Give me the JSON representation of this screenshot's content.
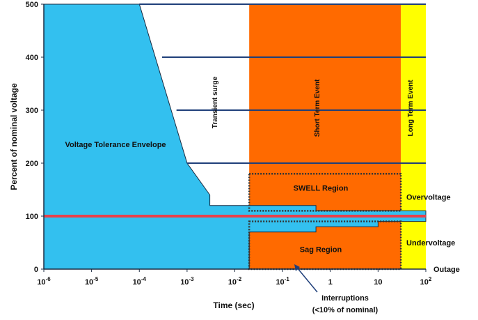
{
  "chart_data": {
    "type": "area",
    "title": "",
    "xlabel": "Time (sec)",
    "ylabel": "Percent of nominal voltage",
    "x_scale": "log",
    "xlim": [
      1e-06,
      100
    ],
    "ylim": [
      0,
      500
    ],
    "grid": false,
    "x_ticks": [
      {
        "value": 1e-06,
        "base": "10",
        "exp": "-6"
      },
      {
        "value": 1e-05,
        "base": "10",
        "exp": "-5"
      },
      {
        "value": 0.0001,
        "base": "10",
        "exp": "-4"
      },
      {
        "value": 0.001,
        "base": "10",
        "exp": "-3"
      },
      {
        "value": 0.01,
        "base": "10",
        "exp": "-2"
      },
      {
        "value": 0.1,
        "base": "10",
        "exp": "-1"
      },
      {
        "value": 1,
        "base": "1",
        "exp": ""
      },
      {
        "value": 10,
        "base": "10",
        "exp": ""
      },
      {
        "value": 100,
        "base": "10",
        "exp": "2"
      }
    ],
    "y_ticks": [
      0,
      100,
      200,
      300,
      400,
      500
    ],
    "hlines": [
      {
        "y": 500,
        "x_from": 0.0001
      },
      {
        "y": 400,
        "x_from": 0.0003
      },
      {
        "y": 300,
        "x_from": 0.0006
      },
      {
        "y": 200,
        "x_from": 0.001
      }
    ],
    "nominal_line": {
      "y": 100,
      "color": "#e8404a"
    },
    "regions": [
      {
        "label": "Voltage Tolerance Envelope",
        "color": "#33c0ef"
      },
      {
        "label": "Transient surge",
        "color": "#ffffff"
      },
      {
        "label": "Short Term Event",
        "color": "#ff6a00",
        "x_from": 0.02,
        "x_to": 30
      },
      {
        "label": "Long Term Event",
        "color": "#ffff00",
        "x_from": 30,
        "x_to": 100
      }
    ],
    "envelope_upper": [
      {
        "x": 1e-06,
        "y": 500
      },
      {
        "x": 0.0001,
        "y": 500
      },
      {
        "x": 0.001,
        "y": 200
      },
      {
        "x": 0.003,
        "y": 140
      },
      {
        "x": 0.003,
        "y": 120
      },
      {
        "x": 0.02,
        "y": 120
      },
      {
        "x": 0.5,
        "y": 120
      },
      {
        "x": 0.5,
        "y": 110
      },
      {
        "x": 100,
        "y": 110
      }
    ],
    "envelope_lower": [
      {
        "x": 100,
        "y": 90
      },
      {
        "x": 10,
        "y": 90
      },
      {
        "x": 10,
        "y": 80
      },
      {
        "x": 0.5,
        "y": 80
      },
      {
        "x": 0.5,
        "y": 70
      },
      {
        "x": 0.02,
        "y": 70
      },
      {
        "x": 0.02,
        "y": 0
      },
      {
        "x": 1e-06,
        "y": 0
      }
    ],
    "swell_region": {
      "label": "SWELL Region",
      "x_from": 0.02,
      "x_to": 30,
      "y_from": 110,
      "y_to": 180
    },
    "sag_region": {
      "label": "Sag Region",
      "x_from": 0.02,
      "x_to": 30,
      "y_from": 0,
      "y_to": 90
    },
    "side_labels": {
      "overvoltage": "Overvoltage",
      "undervoltage": "Undervoltage",
      "outage": "Outage"
    },
    "annotation": {
      "line1": "Interruptions",
      "line2": "(<10% of nominal)"
    },
    "colors": {
      "envelope": "#33c0ef",
      "short_term": "#ff6a00",
      "long_term": "#ffff00",
      "nominal": "#e8404a",
      "grid_lines": "#1f3f7a",
      "dotted_box": "#333333"
    }
  }
}
